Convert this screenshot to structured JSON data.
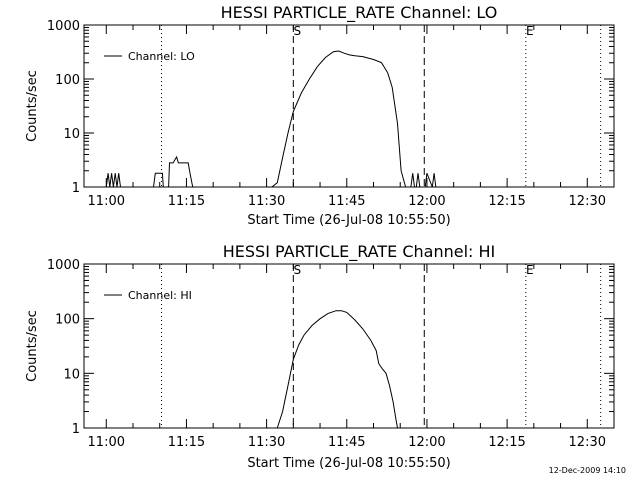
{
  "chart_data": [
    {
      "type": "line",
      "title": "HESSI PARTICLE_RATE Channel: LO",
      "xlabel": "Start Time (26-Jul-08 10:55:50)",
      "ylabel": "Counts/sec",
      "y_scale": "log",
      "ylim": [
        1,
        1000
      ],
      "xlim": [
        "10:55:50",
        "12:35:00"
      ],
      "x_ticks": [
        "11:00",
        "11:15",
        "11:30",
        "11:45",
        "12:00",
        "12:15",
        "12:30"
      ],
      "y_ticks": [
        "1",
        "10",
        "100",
        "1000"
      ],
      "legend": {
        "position": "top-left",
        "entries": [
          "Channel: LO"
        ]
      },
      "markers": [
        {
          "label": "S",
          "x": "11:35:00",
          "style": "dashed"
        },
        {
          "label": "",
          "x": "11:59:30",
          "style": "dashed"
        },
        {
          "label": "",
          "x": "11:10:20",
          "style": "dotted"
        },
        {
          "label": "E",
          "x": "12:18:30",
          "style": "dotted"
        },
        {
          "label": "",
          "x": "12:32:30",
          "style": "dotted"
        }
      ],
      "series": [
        {
          "name": "Channel: LO",
          "x": [
            "11:00:00",
            "11:00:20",
            "11:00:40",
            "11:01:00",
            "11:01:20",
            "11:01:40",
            "11:02:00",
            "11:02:20",
            "11:02:40",
            "11:08:50",
            "11:09:10",
            "11:10:30",
            "11:10:40",
            "11:11:40",
            "11:11:50",
            "11:12:30",
            "11:13:10",
            "11:13:30",
            "11:14:30",
            "11:15:20",
            "11:15:40",
            "11:16:10",
            "11:31:00",
            "11:32:00",
            "11:33:00",
            "11:34:00",
            "11:35:00",
            "11:36:30",
            "11:38:00",
            "11:39:30",
            "11:41:00",
            "11:42:30",
            "11:43:30",
            "11:44:30",
            "11:45:30",
            "11:46:30",
            "11:48:00",
            "11:50:00",
            "11:51:30",
            "11:52:40",
            "11:53:30",
            "11:54:30",
            "11:55:10",
            "11:56:00",
            "11:57:00",
            "11:57:20",
            "11:57:40",
            "11:58:00",
            "11:58:20",
            "11:58:40",
            "11:59:00",
            "11:59:20",
            "11:59:40",
            "12:00:00",
            "12:01:00",
            "12:01:20",
            "12:01:40"
          ],
          "values": [
            1,
            1.8,
            1,
            1.8,
            1,
            1.8,
            1,
            1.8,
            1,
            1,
            1.8,
            1.8,
            1,
            1,
            2.8,
            2.8,
            3.6,
            2.8,
            2.8,
            2.8,
            1.8,
            1,
            1,
            1.2,
            3.5,
            10,
            25,
            55,
            100,
            170,
            250,
            320,
            330,
            300,
            280,
            270,
            260,
            230,
            200,
            130,
            70,
            15,
            2,
            1,
            1,
            1.8,
            1,
            1,
            1.8,
            1,
            1,
            1,
            1,
            1.8,
            1,
            1.8,
            1
          ]
        }
      ]
    },
    {
      "type": "line",
      "title": "HESSI PARTICLE_RATE Channel: HI",
      "xlabel": "Start Time (26-Jul-08 10:55:50)",
      "ylabel": "Counts/sec",
      "y_scale": "log",
      "ylim": [
        1,
        1000
      ],
      "xlim": [
        "10:55:50",
        "12:35:00"
      ],
      "x_ticks": [
        "11:00",
        "11:15",
        "11:30",
        "11:45",
        "12:00",
        "12:15",
        "12:30"
      ],
      "y_ticks": [
        "1",
        "10",
        "100",
        "1000"
      ],
      "legend": {
        "position": "top-left",
        "entries": [
          "Channel: HI"
        ]
      },
      "markers": [
        {
          "label": "S",
          "x": "11:35:00",
          "style": "dashed"
        },
        {
          "label": "",
          "x": "11:59:30",
          "style": "dashed"
        },
        {
          "label": "",
          "x": "11:10:20",
          "style": "dotted"
        },
        {
          "label": "E",
          "x": "12:18:30",
          "style": "dotted"
        },
        {
          "label": "",
          "x": "12:32:30",
          "style": "dotted"
        }
      ],
      "series": [
        {
          "name": "Channel: HI",
          "x": [
            "11:32:00",
            "11:33:00",
            "11:34:00",
            "11:35:00",
            "11:36:00",
            "11:37:00",
            "11:38:30",
            "11:40:00",
            "11:41:30",
            "11:43:00",
            "11:44:00",
            "11:45:00",
            "11:46:30",
            "11:48:00",
            "11:49:30",
            "11:50:30",
            "11:51:00",
            "11:51:40",
            "11:52:20",
            "11:53:00",
            "11:53:40",
            "11:54:10",
            "11:54:30"
          ],
          "values": [
            1,
            2,
            6,
            18,
            33,
            50,
            75,
            100,
            125,
            140,
            140,
            130,
            95,
            65,
            40,
            26,
            15,
            12,
            10,
            6,
            3,
            1.5,
            1
          ]
        }
      ]
    }
  ],
  "footer": "12-Dec-2009 14:10"
}
